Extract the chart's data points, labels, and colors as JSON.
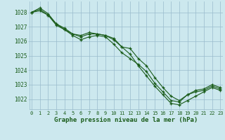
{
  "title": "Graphe pression niveau de la mer (hPa)",
  "bg_color": "#cce8ee",
  "grid_color": "#99bbcc",
  "line_color": "#1a5c1a",
  "marker_color": "#1a5c1a",
  "x_ticks": [
    0,
    1,
    2,
    3,
    4,
    5,
    6,
    7,
    8,
    9,
    10,
    11,
    12,
    13,
    14,
    15,
    16,
    17,
    18,
    19,
    20,
    21,
    22,
    23
  ],
  "y_ticks": [
    1022,
    1023,
    1024,
    1025,
    1026,
    1027,
    1028
  ],
  "ylim": [
    1021.3,
    1028.75
  ],
  "xlim": [
    -0.3,
    23.3
  ],
  "series": [
    [
      1028.0,
      1028.3,
      1027.9,
      1027.2,
      1026.9,
      1026.5,
      1026.4,
      1026.6,
      1026.5,
      1026.4,
      1026.2,
      1025.6,
      1025.1,
      1024.3,
      1023.6,
      1022.9,
      1022.3,
      1021.7,
      1021.6,
      1021.9,
      1022.2,
      1022.5,
      1022.8,
      1022.6
    ],
    [
      1028.0,
      1028.2,
      1027.8,
      1027.2,
      1026.8,
      1026.5,
      1026.3,
      1026.5,
      1026.5,
      1026.4,
      1026.1,
      1025.6,
      1025.5,
      1024.8,
      1024.3,
      1023.5,
      1022.8,
      1022.2,
      1021.9,
      1022.3,
      1022.5,
      1022.6,
      1022.9,
      1022.7
    ],
    [
      1028.0,
      1028.1,
      1027.8,
      1027.1,
      1026.8,
      1026.4,
      1026.1,
      1026.3,
      1026.4,
      1026.3,
      1025.8,
      1025.2,
      1024.8,
      1024.4,
      1023.9,
      1023.1,
      1022.5,
      1021.9,
      1021.8,
      1022.3,
      1022.6,
      1022.7,
      1023.0,
      1022.8
    ]
  ]
}
